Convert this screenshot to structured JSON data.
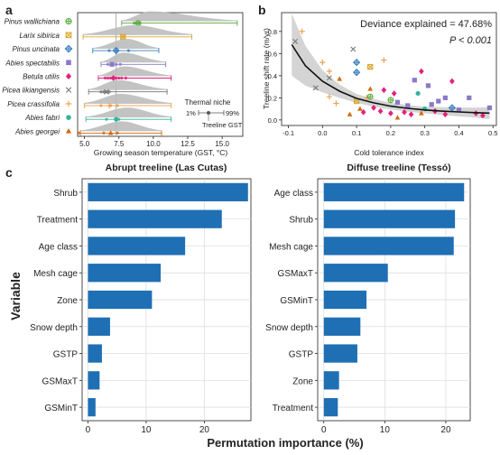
{
  "panel_labels": {
    "a": "a",
    "b": "b",
    "c": "c"
  },
  "colors": {
    "bar": "#1f6fb4",
    "grid": "#d9d9d9",
    "band": "#cccccc",
    "curve": "#111111"
  },
  "chart_data": [
    {
      "id": "a",
      "type": "scatter",
      "xlabel": "Growing season temperature (GST, °C)",
      "xticks": [
        5.0,
        7.5,
        10.0,
        12.5,
        15.0
      ],
      "xlim": [
        4.5,
        16.5
      ],
      "vline": 7.3,
      "legend": {
        "title": "Thermal niche",
        "low": "1%",
        "high": "99%",
        "point": "Treeline GST"
      },
      "series": [
        {
          "name": "Pinus wallichiana",
          "color": "#5aab3c",
          "marker": "circle-plus",
          "niche": [
            7.7,
            16.1
          ],
          "treeline": 8.9,
          "points": [
            8.6,
            8.8,
            9.0
          ]
        },
        {
          "name": "Larix sibirica",
          "color": "#d9a62e",
          "marker": "box-x",
          "niche": [
            4.9,
            12.8
          ],
          "treeline": 7.8,
          "points": [
            7.8
          ]
        },
        {
          "name": "Pinus uncinata",
          "color": "#3a7fbf",
          "marker": "diamond-plus",
          "niche": [
            5.6,
            10.4
          ],
          "treeline": 7.3,
          "points": [
            6.8,
            7.3,
            8.2
          ]
        },
        {
          "name": "Abies spectabilis",
          "color": "#8b78c8",
          "marker": "square",
          "niche": [
            6.2,
            10.9
          ],
          "treeline": 7.0,
          "points": [
            6.7,
            7.0,
            7.3,
            7.6
          ]
        },
        {
          "name": "Betula utilis",
          "color": "#e0237c",
          "marker": "diamond",
          "niche": [
            6.0,
            11.3
          ],
          "treeline": 7.1,
          "points": [
            6.5,
            6.7,
            6.9,
            7.1,
            7.3,
            7.5,
            7.7,
            8.0
          ]
        },
        {
          "name": "Picea likiangensis",
          "color": "#777777",
          "marker": "x",
          "niche": [
            5.3,
            11.0
          ],
          "treeline": 6.6,
          "points": [
            6.2,
            6.4,
            6.6,
            6.8
          ]
        },
        {
          "name": "Picea crassifolia",
          "color": "#f09a4a",
          "marker": "plus",
          "niche": [
            5.0,
            11.3
          ],
          "treeline": 6.8,
          "points": [
            6.2,
            6.9,
            7.4
          ]
        },
        {
          "name": "Abies fabri",
          "color": "#35b29a",
          "marker": "circle",
          "niche": [
            5.1,
            11.3
          ],
          "treeline": 7.3,
          "points": [
            6.6,
            7.5
          ]
        },
        {
          "name": "Abies georgei",
          "color": "#d36b12",
          "marker": "triangle",
          "niche": [
            4.7,
            10.6
          ],
          "treeline": 6.9,
          "points": [
            4.6,
            6.4,
            7.4
          ]
        }
      ]
    },
    {
      "id": "b",
      "type": "scatter",
      "xlabel": "Cold tolerance index",
      "ylabel": "Treeline shift rate (m/yr)",
      "xticks": [
        -0.1,
        0.0,
        0.1,
        0.2,
        0.3,
        0.4,
        0.5
      ],
      "yticks": [
        0.0,
        0.2,
        0.4,
        0.6,
        0.8
      ],
      "xlim": [
        -0.12,
        0.51
      ],
      "ylim": [
        -0.05,
        0.97
      ],
      "annotation": "Deviance explained = 47.68%",
      "annotation2": "P < 0.001",
      "fit": [
        [
          -0.09,
          0.68
        ],
        [
          -0.05,
          0.49
        ],
        [
          0.0,
          0.35
        ],
        [
          0.05,
          0.26
        ],
        [
          0.1,
          0.195
        ],
        [
          0.15,
          0.155
        ],
        [
          0.2,
          0.125
        ],
        [
          0.25,
          0.105
        ],
        [
          0.3,
          0.09
        ],
        [
          0.35,
          0.08
        ],
        [
          0.4,
          0.072
        ],
        [
          0.45,
          0.066
        ],
        [
          0.49,
          0.062
        ]
      ],
      "band": [
        0.28,
        0.18,
        0.1,
        0.06,
        0.04,
        0.035,
        0.03,
        0.03,
        0.03,
        0.035,
        0.04,
        0.045,
        0.055
      ],
      "points": [
        {
          "s": "x",
          "c": "#777777",
          "x": -0.08,
          "y": 0.71
        },
        {
          "s": "x",
          "c": "#777777",
          "x": -0.02,
          "y": 0.29
        },
        {
          "s": "x",
          "c": "#777777",
          "x": 0.09,
          "y": 0.64
        },
        {
          "s": "x",
          "c": "#777777",
          "x": 0.02,
          "y": 0.38
        },
        {
          "s": "plus",
          "c": "#f09a4a",
          "x": -0.06,
          "y": 0.8
        },
        {
          "s": "plus",
          "c": "#f09a4a",
          "x": 0.0,
          "y": 0.52
        },
        {
          "s": "plus",
          "c": "#f09a4a",
          "x": 0.02,
          "y": 0.21
        },
        {
          "s": "plus",
          "c": "#f09a4a",
          "x": 0.04,
          "y": 0.15
        },
        {
          "s": "plus",
          "c": "#f09a4a",
          "x": 0.18,
          "y": 0.54
        },
        {
          "s": "plus",
          "c": "#f09a4a",
          "x": 0.13,
          "y": 0.2
        },
        {
          "s": "plus",
          "c": "#f09a4a",
          "x": 0.02,
          "y": 0.44
        },
        {
          "s": "box-x",
          "c": "#d9a62e",
          "x": 0.14,
          "y": 0.48
        },
        {
          "s": "box-x",
          "c": "#d9a62e",
          "x": 0.1,
          "y": 0.17
        },
        {
          "s": "diamond-plus",
          "c": "#3a7fbf",
          "x": 0.1,
          "y": 0.52
        },
        {
          "s": "diamond-plus",
          "c": "#3a7fbf",
          "x": 0.1,
          "y": 0.43
        },
        {
          "s": "diamond-plus",
          "c": "#3a7fbf",
          "x": 0.38,
          "y": 0.11
        },
        {
          "s": "circle-plus",
          "c": "#5aab3c",
          "x": 0.14,
          "y": 0.21
        },
        {
          "s": "circle-plus",
          "c": "#5aab3c",
          "x": 0.2,
          "y": 0.18
        },
        {
          "s": "circle",
          "c": "#35b29a",
          "x": 0.28,
          "y": 0.24
        },
        {
          "s": "circle",
          "c": "#35b29a",
          "x": 0.3,
          "y": 0.1
        },
        {
          "s": "triangle",
          "c": "#d36b12",
          "x": 0.05,
          "y": 0.37
        },
        {
          "s": "triangle",
          "c": "#d36b12",
          "x": 0.14,
          "y": 0.28
        },
        {
          "s": "triangle",
          "c": "#d36b12",
          "x": 0.11,
          "y": 0.1
        },
        {
          "s": "triangle",
          "c": "#d36b12",
          "x": 0.29,
          "y": 0.06
        },
        {
          "s": "triangle",
          "c": "#d36b12",
          "x": 0.08,
          "y": 0.05
        },
        {
          "s": "triangle",
          "c": "#d36b12",
          "x": 0.22,
          "y": 0.02
        },
        {
          "s": "square",
          "c": "#8b78c8",
          "x": 0.27,
          "y": 0.36
        },
        {
          "s": "square",
          "c": "#8b78c8",
          "x": 0.31,
          "y": 0.31
        },
        {
          "s": "square",
          "c": "#8b78c8",
          "x": 0.34,
          "y": 0.17
        },
        {
          "s": "square",
          "c": "#8b78c8",
          "x": 0.32,
          "y": 0.14
        },
        {
          "s": "square",
          "c": "#8b78c8",
          "x": 0.36,
          "y": 0.2
        },
        {
          "s": "square",
          "c": "#8b78c8",
          "x": 0.43,
          "y": 0.2
        },
        {
          "s": "square",
          "c": "#8b78c8",
          "x": 0.49,
          "y": 0.11
        },
        {
          "s": "square",
          "c": "#8b78c8",
          "x": 0.4,
          "y": 0.09
        },
        {
          "s": "square",
          "c": "#8b78c8",
          "x": 0.22,
          "y": 0.16
        },
        {
          "s": "square",
          "c": "#8b78c8",
          "x": 0.25,
          "y": 0.13
        },
        {
          "s": "diamond",
          "c": "#e0237c",
          "x": 0.18,
          "y": 0.27
        },
        {
          "s": "diamond",
          "c": "#e0237c",
          "x": 0.21,
          "y": 0.24
        },
        {
          "s": "diamond",
          "c": "#e0237c",
          "x": 0.29,
          "y": 0.44
        },
        {
          "s": "diamond",
          "c": "#e0237c",
          "x": 0.38,
          "y": 0.35
        },
        {
          "s": "diamond",
          "c": "#e0237c",
          "x": 0.45,
          "y": 0.06
        },
        {
          "s": "diamond",
          "c": "#e0237c",
          "x": 0.47,
          "y": 0.04
        },
        {
          "s": "diamond",
          "c": "#e0237c",
          "x": 0.17,
          "y": 0.08
        },
        {
          "s": "diamond",
          "c": "#e0237c",
          "x": 0.2,
          "y": 0.06
        },
        {
          "s": "diamond",
          "c": "#e0237c",
          "x": 0.24,
          "y": 0.07
        },
        {
          "s": "diamond",
          "c": "#e0237c",
          "x": 0.26,
          "y": 0.05
        },
        {
          "s": "diamond",
          "c": "#e0237c",
          "x": 0.12,
          "y": 0.07
        },
        {
          "s": "diamond",
          "c": "#e0237c",
          "x": 0.33,
          "y": 0.08
        },
        {
          "s": "diamond",
          "c": "#e0237c",
          "x": 0.36,
          "y": 0.05
        },
        {
          "s": "diamond",
          "c": "#e0237c",
          "x": 0.15,
          "y": 0.11
        }
      ]
    },
    {
      "id": "c1",
      "type": "bar",
      "title": "Abrupt treeline (Las Cutas)",
      "categories": [
        "Shrub",
        "Treatment",
        "Age class",
        "Mesh cage",
        "Zone",
        "Snow depth",
        "GSTP",
        "GSMaxT",
        "GSMinT"
      ],
      "values": [
        27.5,
        23.0,
        16.7,
        12.5,
        11.0,
        3.8,
        2.4,
        2.0,
        1.3
      ],
      "xticks": [
        0,
        10,
        20
      ],
      "xlim": [
        -1,
        28
      ]
    },
    {
      "id": "c2",
      "type": "bar",
      "title": "Diffuse treeline (Tessó)",
      "categories": [
        "Age class",
        "Shrub",
        "Mesh cage",
        "GSMaxT",
        "GSMinT",
        "Snow depth",
        "GSTP",
        "Zone",
        "Treatment"
      ],
      "values": [
        23.0,
        21.5,
        21.3,
        10.5,
        7.0,
        6.0,
        5.5,
        2.5,
        2.3
      ],
      "xticks": [
        0,
        10,
        20
      ],
      "xlim": [
        -1,
        24
      ]
    }
  ],
  "panel_c": {
    "ylabel": "Variable",
    "xlabel": "Permutation importance (%)"
  }
}
